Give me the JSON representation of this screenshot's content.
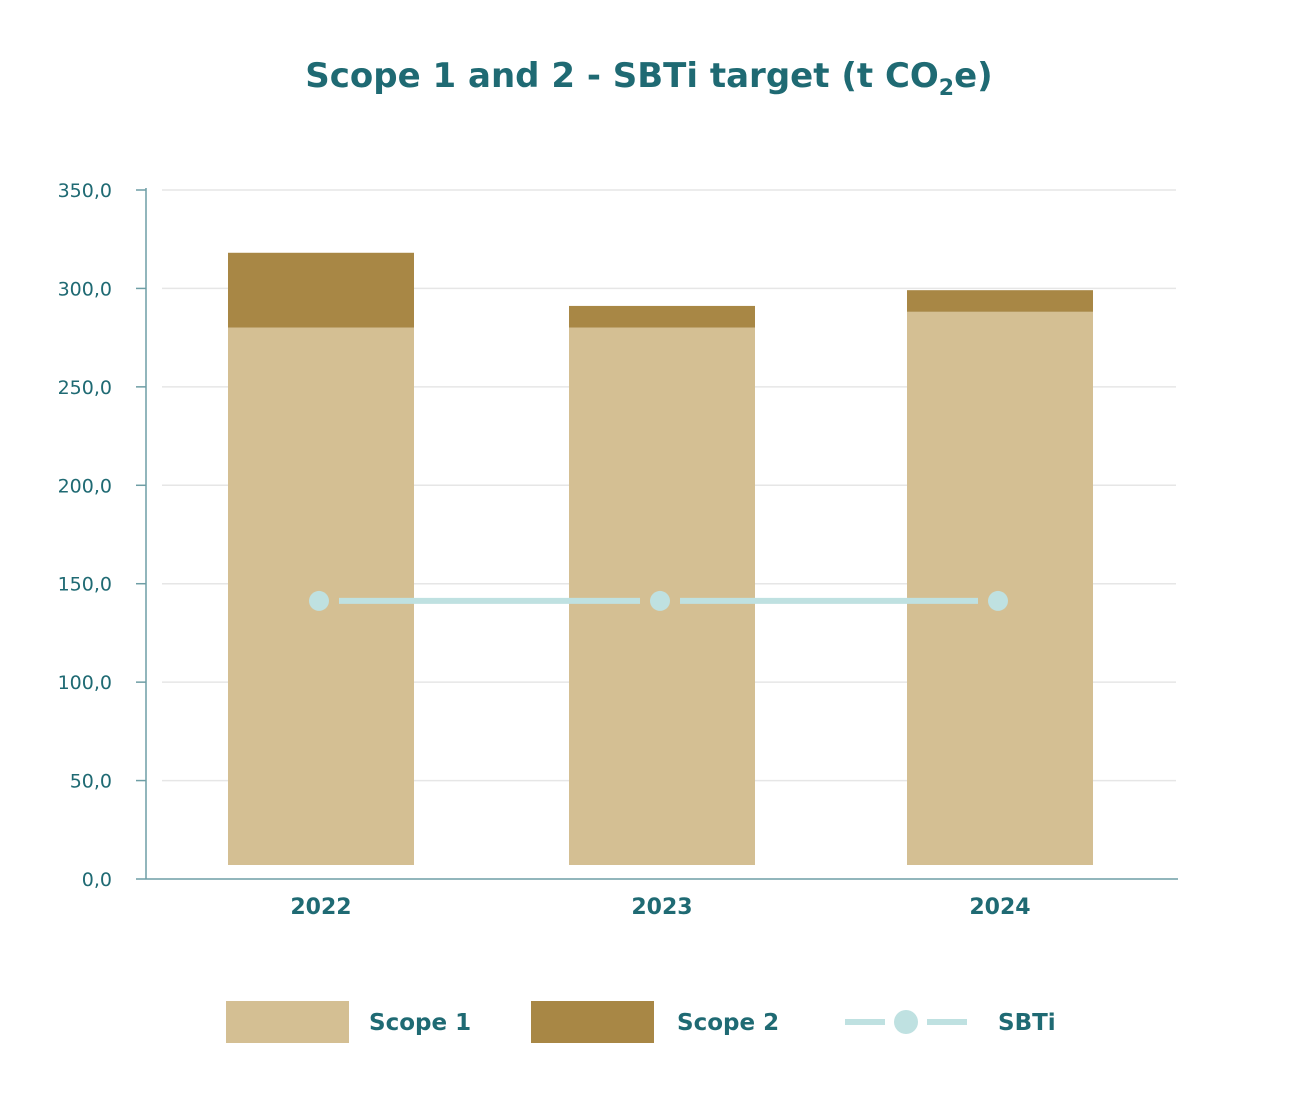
{
  "chart_data": {
    "type": "bar",
    "stacked": true,
    "title_main": "Scope 1 and 2 - SBTi target (t CO",
    "title_sub": "2",
    "title_end": "e)",
    "categories": [
      "2022",
      "2023",
      "2024"
    ],
    "series": [
      {
        "name": "Scope 1",
        "type": "bar",
        "color": "#d4bf93",
        "values": [
          273,
          273,
          281
        ]
      },
      {
        "name": "Scope 2",
        "type": "bar",
        "color": "#a88745",
        "values": [
          38,
          11,
          11
        ]
      },
      {
        "name": "SBTi",
        "type": "line",
        "color": "#bfe1e1",
        "values": [
          141,
          141,
          141
        ]
      }
    ],
    "yticks": [
      "0,0",
      "50,0",
      "100,0",
      "150,0",
      "200,0",
      "250,0",
      "300,0",
      "350,0"
    ],
    "ylim": [
      0,
      350
    ],
    "grid": true,
    "legend_position": "bottom"
  }
}
